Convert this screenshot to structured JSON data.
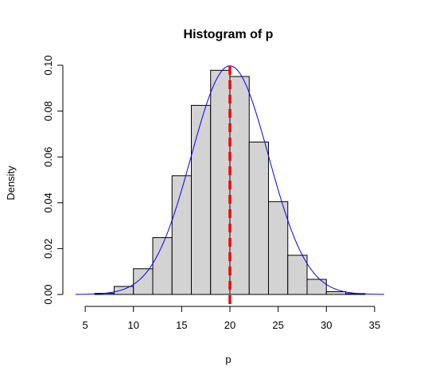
{
  "chart_data": {
    "type": "bar",
    "title": "Histogram of p",
    "xlabel": "p",
    "ylabel": "Density",
    "xlim": [
      4,
      36
    ],
    "ylim": [
      0,
      0.1
    ],
    "x_ticks": [
      "5",
      "10",
      "15",
      "20",
      "25",
      "30",
      "35"
    ],
    "y_ticks": [
      "0.00",
      "0.02",
      "0.04",
      "0.06",
      "0.08",
      "0.10"
    ],
    "bins": [
      {
        "start": 6,
        "end": 8,
        "density": 0.0005
      },
      {
        "start": 8,
        "end": 10,
        "density": 0.0035
      },
      {
        "start": 10,
        "end": 12,
        "density": 0.0112
      },
      {
        "start": 12,
        "end": 14,
        "density": 0.0248
      },
      {
        "start": 14,
        "end": 16,
        "density": 0.0518
      },
      {
        "start": 16,
        "end": 18,
        "density": 0.0825
      },
      {
        "start": 18,
        "end": 20,
        "density": 0.0978
      },
      {
        "start": 20,
        "end": 22,
        "density": 0.0951
      },
      {
        "start": 22,
        "end": 24,
        "density": 0.0665
      },
      {
        "start": 24,
        "end": 26,
        "density": 0.0405
      },
      {
        "start": 26,
        "end": 28,
        "density": 0.0171
      },
      {
        "start": 28,
        "end": 30,
        "density": 0.0066
      },
      {
        "start": 30,
        "end": 32,
        "density": 0.0012
      },
      {
        "start": 32,
        "end": 34,
        "density": 0.0004
      }
    ],
    "density_curve": {
      "type": "normal",
      "mean": 20,
      "sd": 4,
      "color": "#0000ff"
    },
    "mean_line": {
      "x": 20,
      "color": "#ff0000",
      "style": "dashed"
    },
    "bar_fill": "#d3d3d3",
    "bar_stroke": "#000000"
  }
}
